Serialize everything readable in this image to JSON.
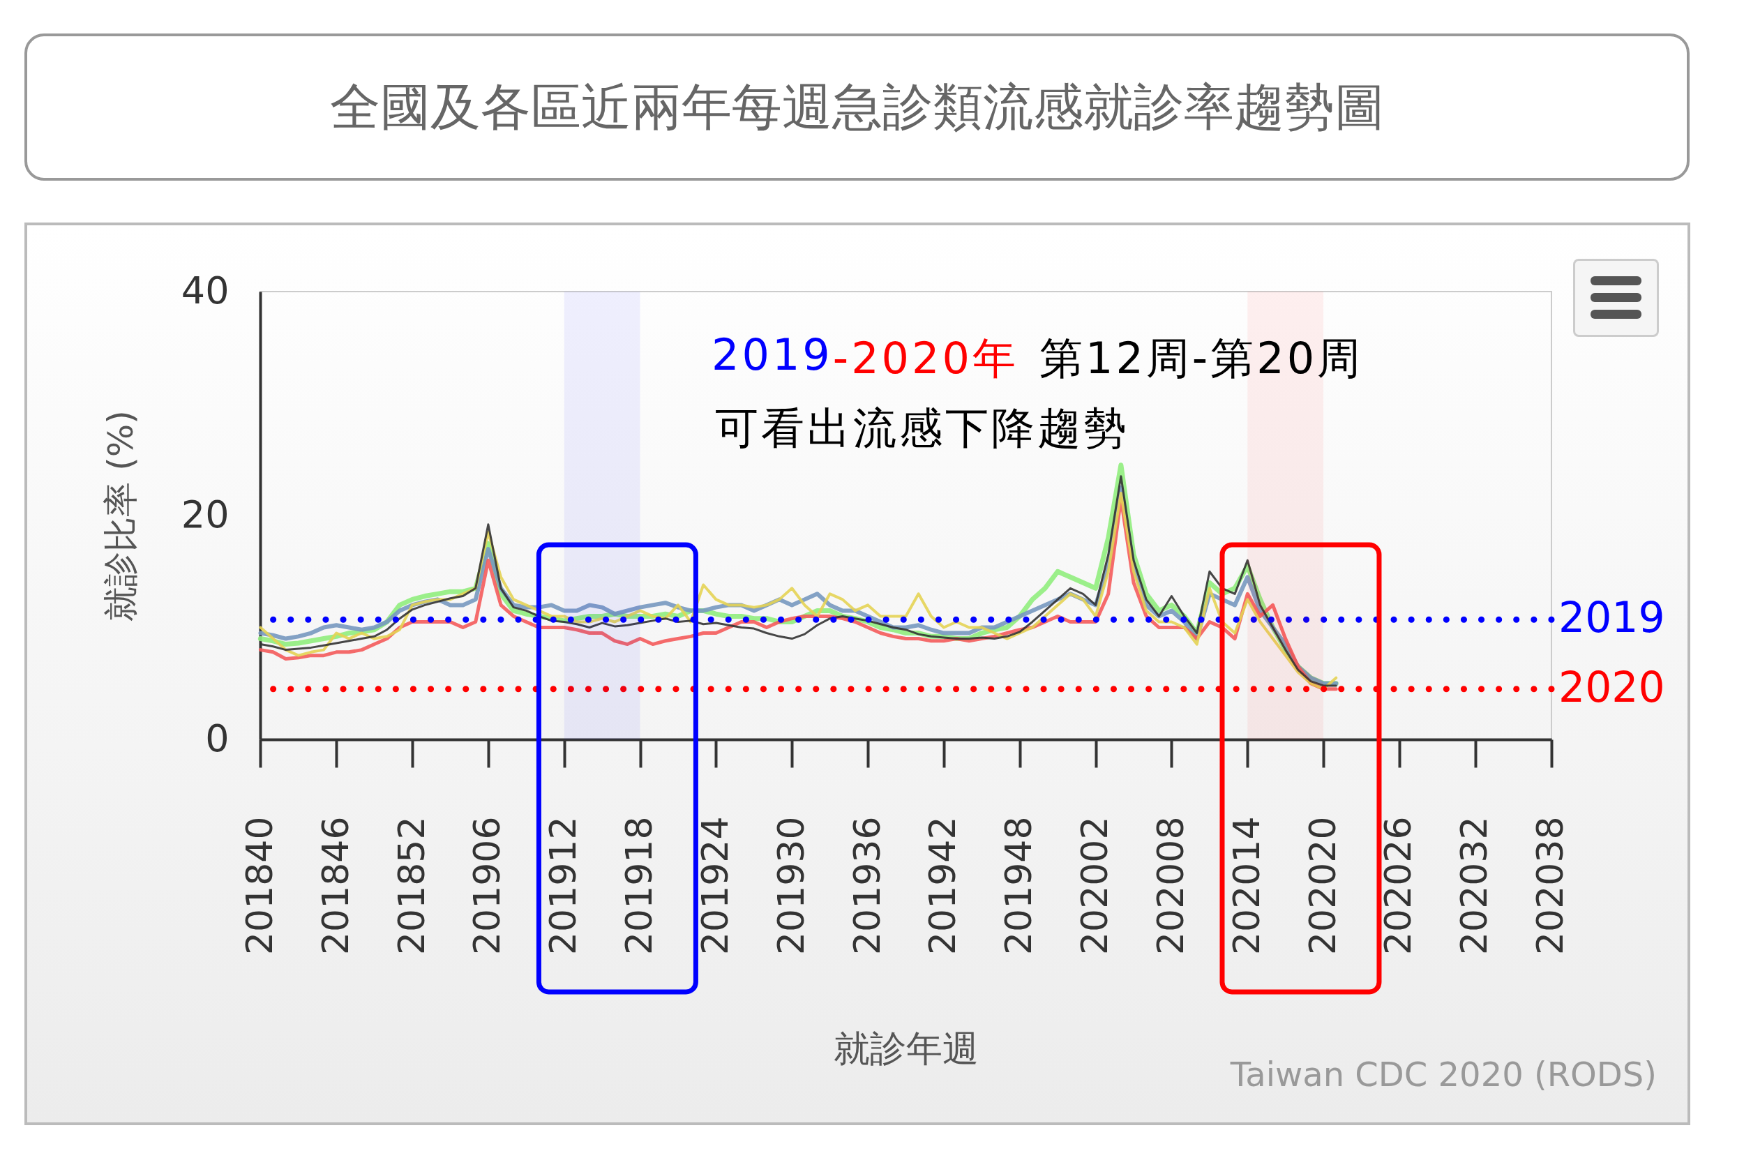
{
  "chart_data": {
    "type": "line",
    "title": "全國及各區近兩年每週急診類流感就診率趨勢圖",
    "xlabel": "就診年週",
    "ylabel": "就診比率 (%)",
    "categories": [
      "201840",
      null,
      null,
      null,
      null,
      null,
      "201846",
      null,
      null,
      null,
      null,
      null,
      "201852",
      null,
      null,
      null,
      null,
      null,
      "201906",
      null,
      null,
      null,
      null,
      null,
      "201912",
      null,
      null,
      null,
      null,
      null,
      "201918",
      null,
      null,
      null,
      null,
      null,
      "201924",
      null,
      null,
      null,
      null,
      null,
      "201930",
      null,
      null,
      null,
      null,
      null,
      "201936",
      null,
      null,
      null,
      null,
      null,
      "201942",
      null,
      null,
      null,
      null,
      null,
      "201948",
      null,
      null,
      null,
      null,
      null,
      "202002",
      null,
      null,
      null,
      null,
      null,
      "202008",
      null,
      null,
      null,
      null,
      null,
      "202014",
      null,
      null,
      null,
      null,
      null,
      "202020",
      null,
      null,
      null,
      null,
      null,
      "202026",
      null,
      null,
      null,
      null,
      null,
      "202032",
      null,
      null,
      null,
      null,
      null,
      "202038"
    ],
    "ylim": [
      0,
      40
    ],
    "yticks": [
      0,
      20,
      40
    ],
    "series": [
      {
        "color": "#90ed7d",
        "values": [
          9.0,
          8.8,
          8.5,
          8.6,
          8.8,
          9.0,
          9.2,
          9.5,
          9.6,
          9.8,
          10.5,
          12.0,
          12.5,
          12.8,
          13.0,
          13.2,
          13.2,
          13.5,
          17.5,
          13.0,
          11.5,
          11.2,
          11.0,
          10.8,
          10.6,
          10.8,
          11.0,
          11.0,
          11.2,
          11.0,
          11.0,
          11.0,
          11.2,
          11.0,
          11.5,
          11.5,
          11.2,
          11.0,
          11.0,
          10.8,
          10.8,
          10.5,
          10.5,
          11.0,
          11.5,
          11.5,
          11.0,
          10.8,
          10.5,
          10.0,
          9.8,
          9.5,
          9.5,
          9.2,
          9.2,
          9.0,
          9.0,
          9.5,
          9.8,
          10.0,
          11.0,
          12.5,
          13.5,
          15.0,
          14.5,
          14.0,
          13.5,
          18.0,
          24.5,
          16.5,
          13.0,
          11.5,
          12.0,
          11.0,
          9.5,
          14.0,
          13.0,
          13.5,
          15.5,
          12.5,
          10.0,
          8.0,
          6.5,
          5.5,
          5.0,
          5.0,
          null,
          null,
          null,
          null,
          null,
          null,
          null,
          null,
          null,
          null,
          null,
          null,
          null,
          null,
          null,
          null,
          null
        ]
      },
      {
        "color": "#7798bf",
        "values": [
          9.5,
          9.3,
          9.0,
          9.2,
          9.5,
          10.0,
          10.2,
          10.0,
          9.8,
          10.0,
          10.5,
          11.5,
          12.0,
          12.3,
          12.5,
          12.0,
          12.0,
          12.5,
          17.0,
          13.5,
          12.0,
          11.8,
          11.8,
          12.0,
          11.5,
          11.5,
          12.0,
          11.8,
          11.2,
          11.5,
          11.8,
          12.0,
          12.2,
          11.8,
          11.5,
          11.5,
          11.8,
          12.0,
          12.0,
          11.5,
          12.0,
          12.5,
          12.0,
          12.5,
          13.0,
          12.0,
          11.5,
          11.5,
          11.0,
          10.5,
          10.0,
          10.0,
          10.2,
          9.8,
          9.5,
          9.5,
          9.5,
          10.0,
          10.0,
          10.5,
          11.0,
          11.5,
          12.0,
          12.5,
          13.0,
          12.5,
          12.0,
          15.5,
          22.5,
          15.5,
          12.0,
          11.0,
          11.5,
          10.5,
          9.0,
          13.0,
          12.5,
          12.0,
          14.5,
          11.5,
          10.0,
          8.5,
          6.5,
          5.5,
          5.0,
          5.0,
          null,
          null,
          null,
          null,
          null,
          null,
          null,
          null,
          null,
          null,
          null,
          null,
          null,
          null,
          null,
          null,
          null
        ]
      },
      {
        "color": "#f45b5b",
        "values": [
          8.0,
          7.8,
          7.2,
          7.3,
          7.5,
          7.5,
          7.8,
          7.8,
          8.0,
          8.5,
          9.0,
          10.0,
          10.5,
          10.5,
          10.5,
          10.5,
          10.0,
          10.5,
          16.0,
          12.0,
          11.0,
          10.5,
          10.0,
          10.0,
          10.0,
          9.8,
          9.5,
          9.5,
          8.8,
          8.5,
          9.0,
          8.5,
          8.8,
          9.0,
          9.2,
          9.5,
          9.5,
          10.0,
          10.5,
          10.5,
          10.0,
          10.5,
          10.8,
          11.0,
          11.0,
          11.0,
          10.8,
          10.5,
          10.0,
          9.5,
          9.2,
          9.0,
          9.0,
          8.8,
          8.8,
          9.0,
          8.8,
          9.0,
          9.2,
          9.5,
          9.8,
          10.0,
          10.5,
          11.0,
          10.5,
          10.5,
          10.5,
          13.0,
          21.5,
          14.0,
          11.0,
          10.0,
          10.0,
          10.0,
          9.0,
          10.5,
          10.0,
          9.0,
          13.0,
          11.0,
          12.0,
          9.0,
          6.5,
          5.0,
          4.5,
          4.5,
          null,
          null,
          null,
          null,
          null,
          null,
          null,
          null,
          null,
          null,
          null,
          null,
          null,
          null,
          null,
          null,
          null
        ]
      },
      {
        "color": "#e4d354",
        "values": [
          10.0,
          9.0,
          8.0,
          7.5,
          7.8,
          8.0,
          9.5,
          9.0,
          9.5,
          9.0,
          9.2,
          9.8,
          12.0,
          12.3,
          12.5,
          12.5,
          13.0,
          13.5,
          18.5,
          14.5,
          12.5,
          12.0,
          11.5,
          11.0,
          11.0,
          10.5,
          10.5,
          10.8,
          10.5,
          11.0,
          11.5,
          11.0,
          10.8,
          12.0,
          10.5,
          13.8,
          12.5,
          12.0,
          12.0,
          11.8,
          12.0,
          12.5,
          13.5,
          12.0,
          11.0,
          13.0,
          12.5,
          11.5,
          12.0,
          11.0,
          11.0,
          11.0,
          13.0,
          11.0,
          10.0,
          10.5,
          10.0,
          10.0,
          9.5,
          9.0,
          9.5,
          10.0,
          11.0,
          12.0,
          13.0,
          12.5,
          11.0,
          15.0,
          22.0,
          15.0,
          11.5,
          10.5,
          10.5,
          10.0,
          8.5,
          13.5,
          10.5,
          9.5,
          12.5,
          10.5,
          9.0,
          7.5,
          6.0,
          5.0,
          4.5,
          5.5,
          null,
          null,
          null,
          null,
          null,
          null,
          null,
          null,
          null,
          null,
          null,
          null,
          null,
          null,
          null,
          null,
          null
        ]
      },
      {
        "color": "#333333",
        "values": [
          8.5,
          8.3,
          8.0,
          8.1,
          8.2,
          8.4,
          8.6,
          8.8,
          9.0,
          9.2,
          9.8,
          10.8,
          11.6,
          12.0,
          12.3,
          12.6,
          12.8,
          13.5,
          19.2,
          13.5,
          11.8,
          11.5,
          11.0,
          10.6,
          10.5,
          10.3,
          10.0,
          10.4,
          10.1,
          10.2,
          10.4,
          10.6,
          10.8,
          10.5,
          10.6,
          10.3,
          10.4,
          10.2,
          10.0,
          9.9,
          9.5,
          9.2,
          9.0,
          9.4,
          10.2,
          10.8,
          11.0,
          10.8,
          10.6,
          10.3,
          10.0,
          9.8,
          9.4,
          9.2,
          9.1,
          9.0,
          9.0,
          9.1,
          9.0,
          9.2,
          9.6,
          10.5,
          11.5,
          12.5,
          13.5,
          13.0,
          12.0,
          16.5,
          23.5,
          16.0,
          12.5,
          11.0,
          12.8,
          11.0,
          9.5,
          15.0,
          13.5,
          13.0,
          16.0,
          12.0,
          10.0,
          8.0,
          6.2,
          5.2,
          4.8,
          4.8,
          null,
          null,
          null,
          null,
          null,
          null,
          null,
          null,
          null,
          null,
          null,
          null,
          null,
          null,
          null,
          null,
          null
        ]
      }
    ],
    "ref_lines": [
      {
        "axis": "y",
        "value": 10.7,
        "color": "#0000ff",
        "line_style": "dotted"
      },
      {
        "axis": "y",
        "value": 4.5,
        "color": "#ff0000",
        "line_style": "dotted"
      }
    ],
    "bands": [
      {
        "axis": "x",
        "from": "201912",
        "to": "201918",
        "color": "#0000ff"
      },
      {
        "axis": "x",
        "from": "202014",
        "to": "202020",
        "color": "#ff0000"
      }
    ],
    "annotations": [
      "2019",
      "-2020年",
      "第12周-第20周",
      "可看出流感下降趨勢",
      "Taiwan CDC 2020 (RODS)",
      "2019",
      "2020"
    ]
  }
}
